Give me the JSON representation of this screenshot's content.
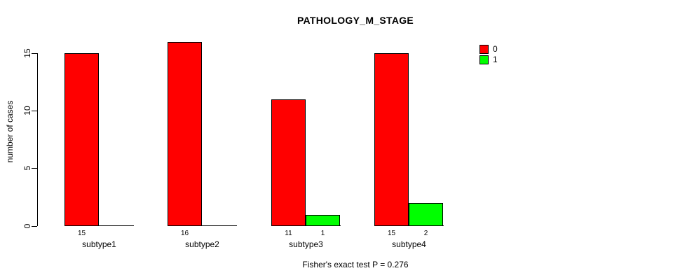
{
  "title": "PATHOLOGY_M_STAGE",
  "footer": "Fisher's exact test P = 0.276",
  "y_axis": {
    "label": "number of cases"
  },
  "legend": {
    "items": [
      {
        "label": "0",
        "color": "#ff0000"
      },
      {
        "label": "1",
        "color": "#00ff00"
      }
    ]
  },
  "chart_data": {
    "type": "bar",
    "title": "PATHOLOGY_M_STAGE",
    "categories": [
      "subtype1",
      "subtype2",
      "subtype3",
      "subtype4"
    ],
    "series": [
      {
        "name": "0",
        "color": "#ff0000",
        "values": [
          15,
          16,
          11,
          15
        ],
        "bar_labels": [
          "15",
          "16",
          "11",
          "15"
        ]
      },
      {
        "name": "1",
        "color": "#00ff00",
        "values": [
          0,
          0,
          1,
          2
        ],
        "bar_labels": [
          "",
          "",
          "1",
          "2"
        ]
      }
    ],
    "xlabel": "",
    "ylabel": "number of cases",
    "yticks": [
      0,
      5,
      10,
      15
    ],
    "ylim": [
      0,
      16
    ],
    "grid": false,
    "legend_position": "right-of-plot-top",
    "annotation": "Fisher's exact test P = 0.276"
  }
}
